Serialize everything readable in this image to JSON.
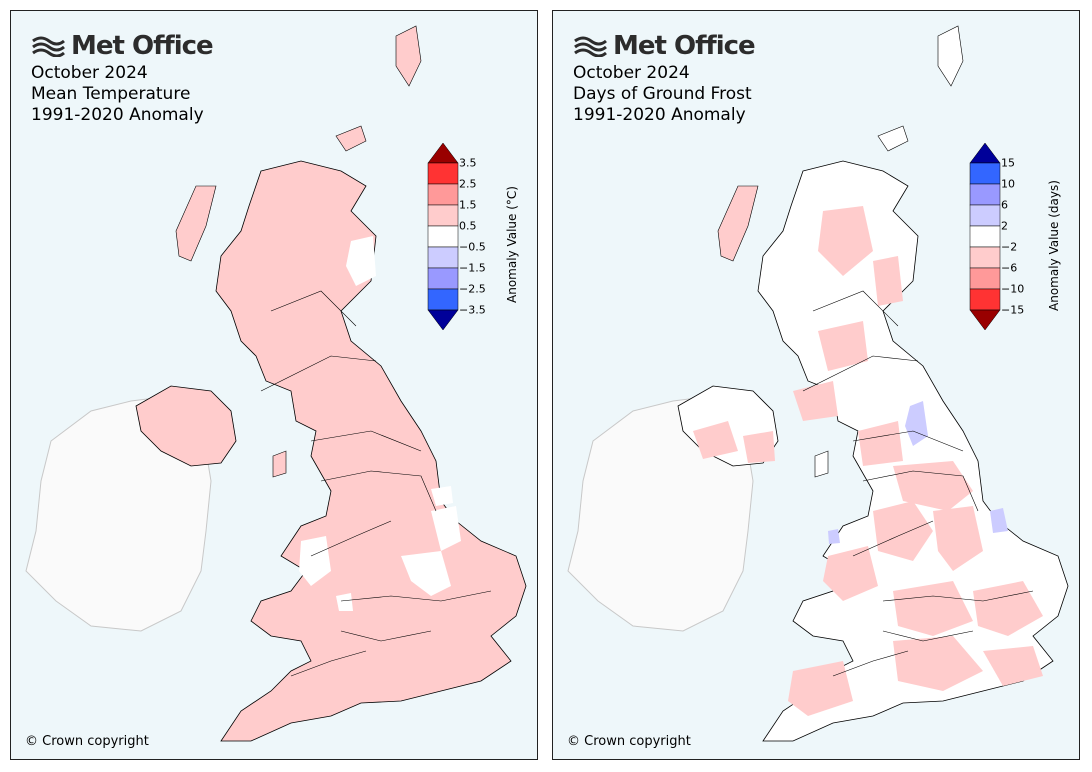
{
  "brand": "Met Office",
  "panels": {
    "left": {
      "title_lines": [
        "October 2024",
        "Mean Temperature",
        "1991-2020 Anomaly"
      ],
      "colorbar_label": "Anomaly Value (°C)",
      "colorbar_ticks": [
        "3.5",
        "2.5",
        "1.5",
        "0.5",
        "−0.5",
        "−1.5",
        "−2.5",
        "−3.5"
      ],
      "colorbar_colors": [
        "#ff3333",
        "#ff9999",
        "#ffcccc",
        "#ffffff",
        "#ccccff",
        "#9999ff",
        "#3366ff"
      ],
      "colorbar_ends": {
        "top": "#990000",
        "bottom": "#000099"
      },
      "copyright": "© Crown copyright"
    },
    "right": {
      "title_lines": [
        "October 2024",
        "Days of Ground Frost",
        "1991-2020 Anomaly"
      ],
      "colorbar_label": "Anomaly Value (days)",
      "colorbar_ticks": [
        "15",
        "10",
        "6",
        "2",
        "−2",
        "−6",
        "−10",
        "−15"
      ],
      "colorbar_colors": [
        "#3366ff",
        "#9999ff",
        "#ccccff",
        "#ffffff",
        "#ffcccc",
        "#ff9999",
        "#ff3333"
      ],
      "colorbar_ends": {
        "top": "#000099",
        "bottom": "#990000"
      },
      "copyright": "© Crown copyright"
    }
  },
  "colors": {
    "sea": "#eef7fa",
    "land_anomaly_left": "#ffcccc",
    "land_neutral": "#ffffff",
    "ireland": "#fafafa",
    "frost_low": "#ffcccc",
    "frost_high": "#ccccff"
  }
}
